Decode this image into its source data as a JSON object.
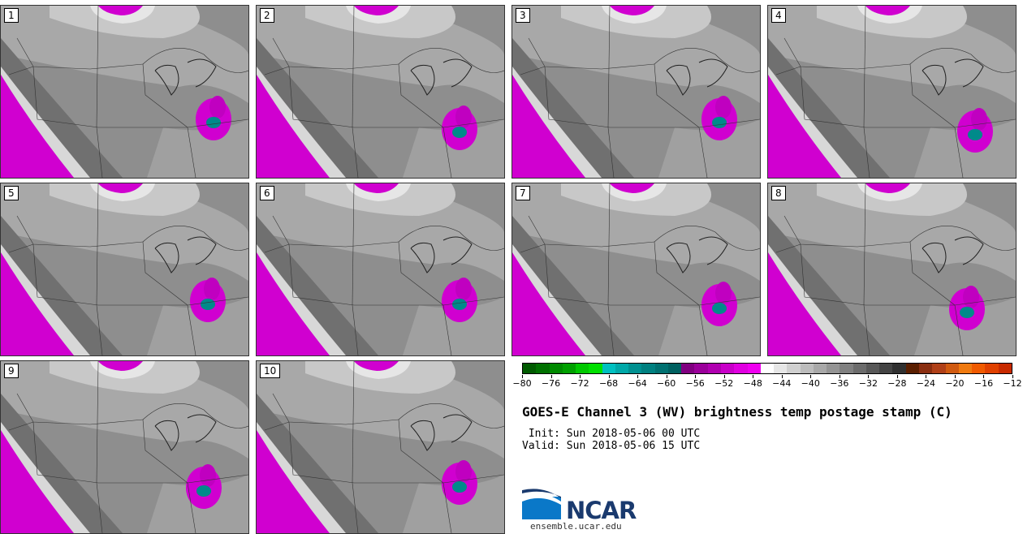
{
  "panels": [
    {
      "label": "1"
    },
    {
      "label": "2"
    },
    {
      "label": "3"
    },
    {
      "label": "4"
    },
    {
      "label": "5"
    },
    {
      "label": "6"
    },
    {
      "label": "7"
    },
    {
      "label": "8"
    },
    {
      "label": "9"
    },
    {
      "label": "10"
    }
  ],
  "colorbar": {
    "colors": [
      "#005a00",
      "#007000",
      "#008a00",
      "#00a000",
      "#00c800",
      "#00e000",
      "#00c0c0",
      "#00a8a8",
      "#009090",
      "#008080",
      "#007070",
      "#006060",
      "#800080",
      "#9a009a",
      "#b000b0",
      "#c800c8",
      "#e000e0",
      "#f000f0",
      "#ffffff",
      "#e6e6e6",
      "#d0d0d0",
      "#bcbcbc",
      "#a8a8a8",
      "#949494",
      "#808080",
      "#6c6c6c",
      "#585858",
      "#444444",
      "#303030",
      "#5a1e00",
      "#8a2e10",
      "#b04018",
      "#d05a10",
      "#f07a10",
      "#f05a00",
      "#e04000",
      "#c82a00"
    ],
    "ticks": [
      "−80",
      "−76",
      "−72",
      "−68",
      "−64",
      "−60",
      "−56",
      "−52",
      "−48",
      "−44",
      "−40",
      "−36",
      "−32",
      "−28",
      "−24",
      "−20",
      "−16",
      "−12"
    ]
  },
  "title": "GOES-E Channel 3 (WV) brightness temp postage stamp (C)",
  "init": " Init: Sun 2018-05-06 00 UTC",
  "valid": "Valid: Sun 2018-05-06 15 UTC",
  "logo": {
    "name": "NCAR",
    "url": "ensemble.ucar.edu"
  }
}
